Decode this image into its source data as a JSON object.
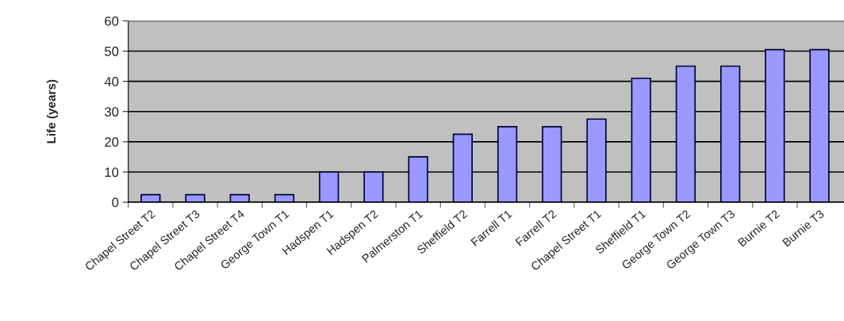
{
  "chart_data": {
    "type": "bar",
    "ylabel": "Life (years)",
    "categories": [
      "Chapel Street T2",
      "Chapel Street T3",
      "Chapel Street T4",
      "George Town T1",
      "Hadspen T1",
      "Hadspen T2",
      "Palmerston T1",
      "Sheffield T2",
      "Farrell T1",
      "Farrell T2",
      "Chapel Street T1",
      "Sheffield T1",
      "George Town T2",
      "George Town T3",
      "Burnie T2",
      "Burnie T3"
    ],
    "values": [
      2.5,
      2.5,
      2.5,
      2.5,
      10,
      10,
      15,
      22.5,
      25,
      25,
      27.5,
      41,
      45,
      45,
      50.5,
      50.5
    ],
    "color": "#9999ff",
    "ylim": [
      0,
      60
    ],
    "yticks": [
      0,
      10,
      20,
      30,
      40,
      50,
      60
    ],
    "grid": "y",
    "legend": false
  }
}
